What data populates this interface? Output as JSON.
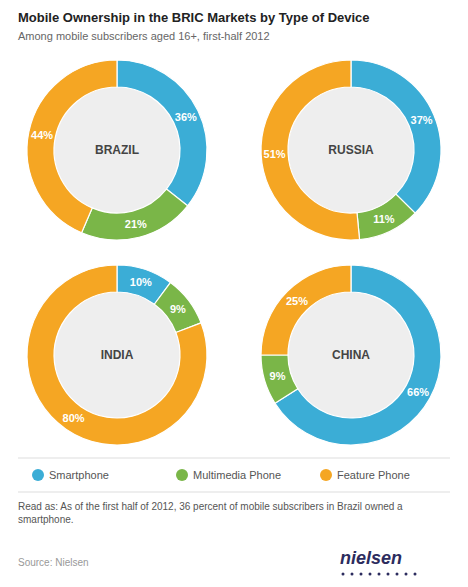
{
  "chart_data": {
    "type": "pie",
    "title": "Mobile Ownership in the BRIC Markets by Type of Device",
    "subtitle": "Among mobile subscribers aged 16+, first-half 2012",
    "categories": [
      "Smartphone",
      "Multimedia Phone",
      "Feature Phone"
    ],
    "colors": [
      "#3badd6",
      "#7ab648",
      "#f5a623"
    ],
    "series": [
      {
        "name": "BRAZIL",
        "values": [
          36,
          21,
          44
        ],
        "value_labels": [
          "36%",
          "21%",
          "44%"
        ]
      },
      {
        "name": "RUSSIA",
        "values": [
          37,
          11,
          51
        ],
        "value_labels": [
          "37%",
          "11%",
          "51%"
        ]
      },
      {
        "name": "INDIA",
        "values": [
          10,
          9,
          80
        ],
        "value_labels": [
          "10%",
          "9%",
          "80%"
        ]
      },
      {
        "name": "CHINA",
        "values": [
          66,
          9,
          25
        ],
        "value_labels": [
          "66%",
          "9%",
          "25%"
        ]
      }
    ],
    "data_labels": true,
    "legend": "bottom",
    "annotations": [
      "Read as: As of the first half of 2012, 36 percent of mobile subscribers in Brazil owned a smartphone.",
      "Source: Nielsen",
      "nielsen"
    ]
  }
}
